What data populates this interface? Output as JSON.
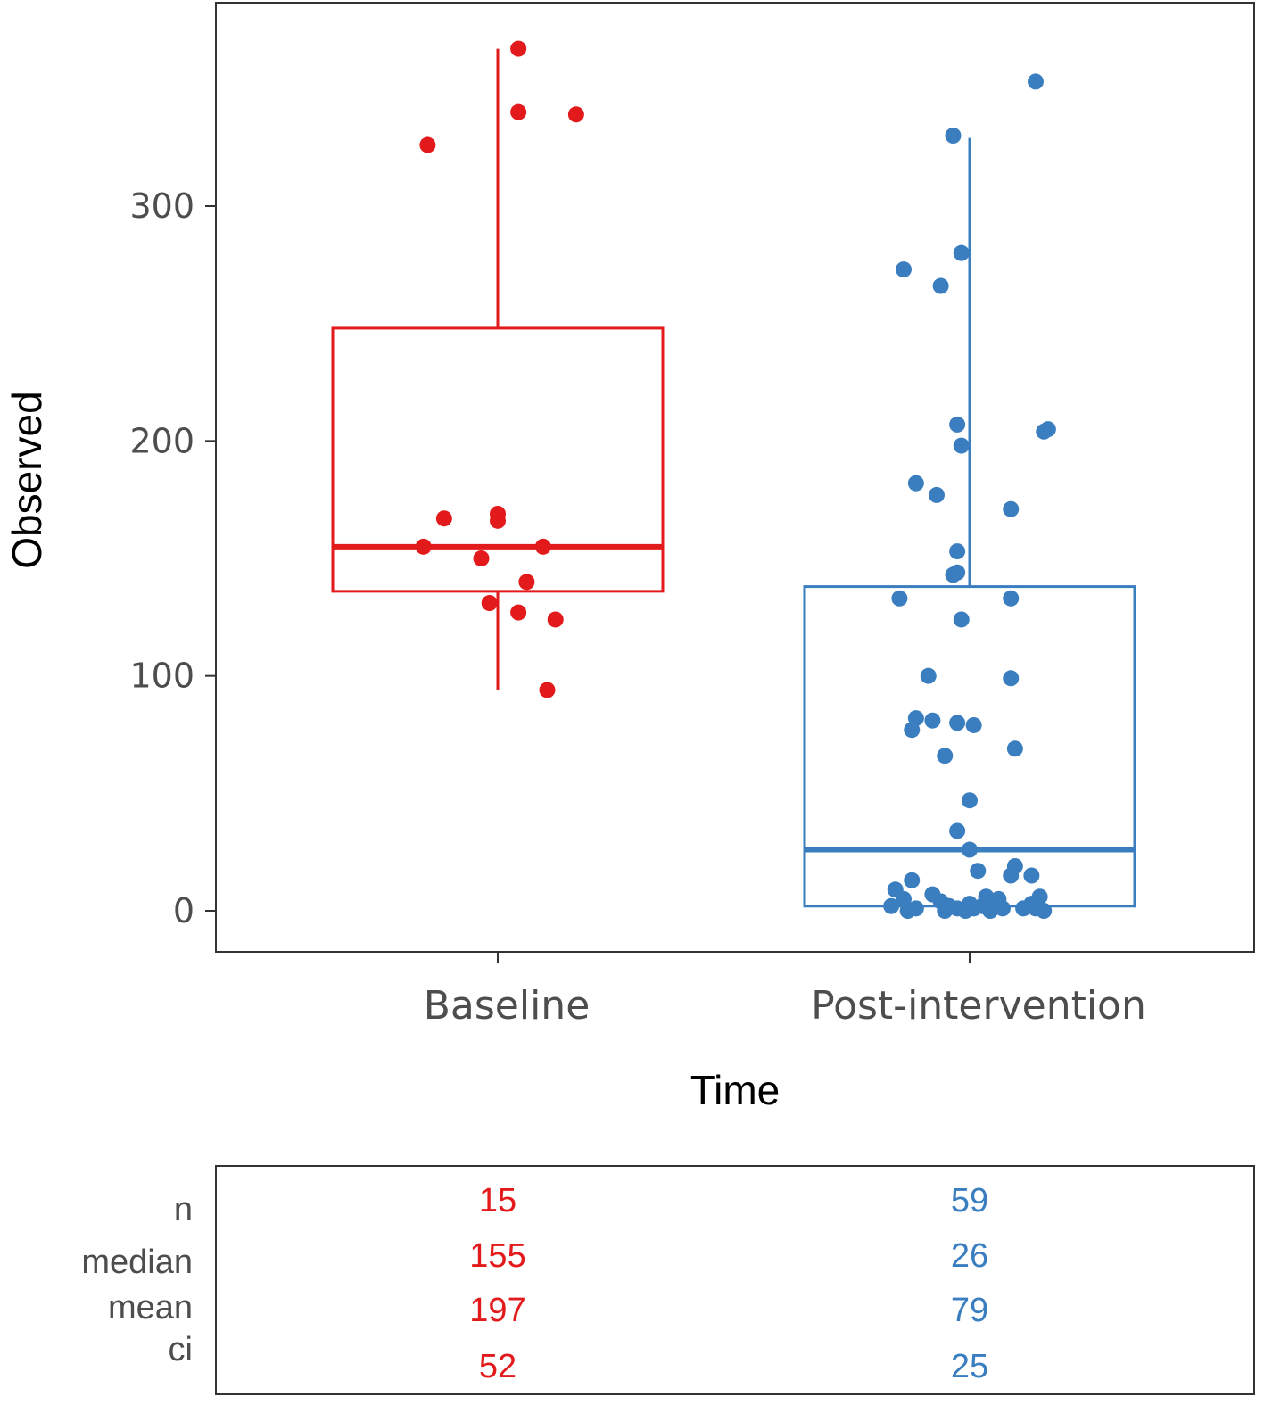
{
  "chart_data": {
    "type": "boxplot",
    "xlabel": "Time",
    "ylabel": "Observed",
    "ylim": [
      -18,
      385
    ],
    "yticks": [
      0,
      100,
      200,
      300
    ],
    "categories": [
      "Baseline",
      "Post-intervention"
    ],
    "colors": {
      "Baseline": "#e31a1c",
      "Post-intervention": "#3a7ebf"
    },
    "groups": [
      {
        "name": "Baseline",
        "color": "#e31a1c",
        "box": {
          "whisker_low": 94,
          "q1": 136,
          "median": 155,
          "q3": 248,
          "whisker_high": 367
        },
        "points": [
          {
            "x": 0.05,
            "y": 367
          },
          {
            "x": 0.05,
            "y": 340
          },
          {
            "x": 0.19,
            "y": 339
          },
          {
            "x": -0.17,
            "y": 326
          },
          {
            "x": -0.13,
            "y": 167
          },
          {
            "x": 0.0,
            "y": 169
          },
          {
            "x": 0.0,
            "y": 166
          },
          {
            "x": -0.18,
            "y": 155
          },
          {
            "x": 0.11,
            "y": 155
          },
          {
            "x": -0.04,
            "y": 150
          },
          {
            "x": 0.07,
            "y": 140
          },
          {
            "x": -0.02,
            "y": 131
          },
          {
            "x": 0.05,
            "y": 127
          },
          {
            "x": 0.14,
            "y": 124
          },
          {
            "x": 0.12,
            "y": 94
          }
        ]
      },
      {
        "name": "Post-intervention",
        "color": "#3a7ebf",
        "box": {
          "whisker_low": 2,
          "q1": 2,
          "median": 26,
          "q3": 138,
          "whisker_high": 329
        },
        "points": [
          {
            "x": 0.16,
            "y": 353
          },
          {
            "x": -0.04,
            "y": 330
          },
          {
            "x": -0.16,
            "y": 273
          },
          {
            "x": -0.07,
            "y": 266
          },
          {
            "x": -0.02,
            "y": 280
          },
          {
            "x": -0.03,
            "y": 207
          },
          {
            "x": -0.02,
            "y": 198
          },
          {
            "x": 0.18,
            "y": 204
          },
          {
            "x": 0.19,
            "y": 205
          },
          {
            "x": -0.13,
            "y": 182
          },
          {
            "x": -0.08,
            "y": 177
          },
          {
            "x": 0.1,
            "y": 171
          },
          {
            "x": -0.03,
            "y": 153
          },
          {
            "x": -0.03,
            "y": 144
          },
          {
            "x": -0.04,
            "y": 143
          },
          {
            "x": -0.17,
            "y": 133
          },
          {
            "x": 0.1,
            "y": 133
          },
          {
            "x": -0.02,
            "y": 124
          },
          {
            "x": -0.1,
            "y": 100
          },
          {
            "x": 0.1,
            "y": 99
          },
          {
            "x": -0.13,
            "y": 82
          },
          {
            "x": -0.09,
            "y": 81
          },
          {
            "x": -0.03,
            "y": 80
          },
          {
            "x": 0.01,
            "y": 79
          },
          {
            "x": -0.14,
            "y": 77
          },
          {
            "x": 0.11,
            "y": 69
          },
          {
            "x": -0.06,
            "y": 66
          },
          {
            "x": 0.0,
            "y": 47
          },
          {
            "x": -0.03,
            "y": 34
          },
          {
            "x": 0.0,
            "y": 26
          },
          {
            "x": 0.02,
            "y": 17
          },
          {
            "x": 0.11,
            "y": 19
          },
          {
            "x": 0.1,
            "y": 15
          },
          {
            "x": 0.15,
            "y": 15
          },
          {
            "x": -0.14,
            "y": 13
          },
          {
            "x": -0.18,
            "y": 9
          },
          {
            "x": -0.16,
            "y": 5
          },
          {
            "x": -0.09,
            "y": 7
          },
          {
            "x": -0.07,
            "y": 4
          },
          {
            "x": 0.04,
            "y": 6
          },
          {
            "x": 0.07,
            "y": 5
          },
          {
            "x": 0.17,
            "y": 6
          },
          {
            "x": -0.19,
            "y": 2
          },
          {
            "x": -0.13,
            "y": 1
          },
          {
            "x": -0.05,
            "y": 2
          },
          {
            "x": -0.03,
            "y": 1
          },
          {
            "x": -0.01,
            "y": 0
          },
          {
            "x": 0.01,
            "y": 1
          },
          {
            "x": 0.03,
            "y": 2
          },
          {
            "x": 0.05,
            "y": 0
          },
          {
            "x": 0.08,
            "y": 1
          },
          {
            "x": 0.13,
            "y": 1
          },
          {
            "x": 0.16,
            "y": 1
          },
          {
            "x": 0.18,
            "y": 0
          },
          {
            "x": 0.06,
            "y": 3
          },
          {
            "x": -0.15,
            "y": 0
          },
          {
            "x": 0.0,
            "y": 3
          },
          {
            "x": 0.15,
            "y": 3
          },
          {
            "x": -0.06,
            "y": 0
          }
        ]
      }
    ],
    "stats_table": {
      "labels": [
        "n",
        "median",
        "mean",
        "ci"
      ],
      "values": {
        "Baseline": [
          "15",
          "155",
          "197",
          "52"
        ],
        "Post-intervention": [
          "59",
          "26",
          "79",
          "25"
        ]
      }
    }
  }
}
